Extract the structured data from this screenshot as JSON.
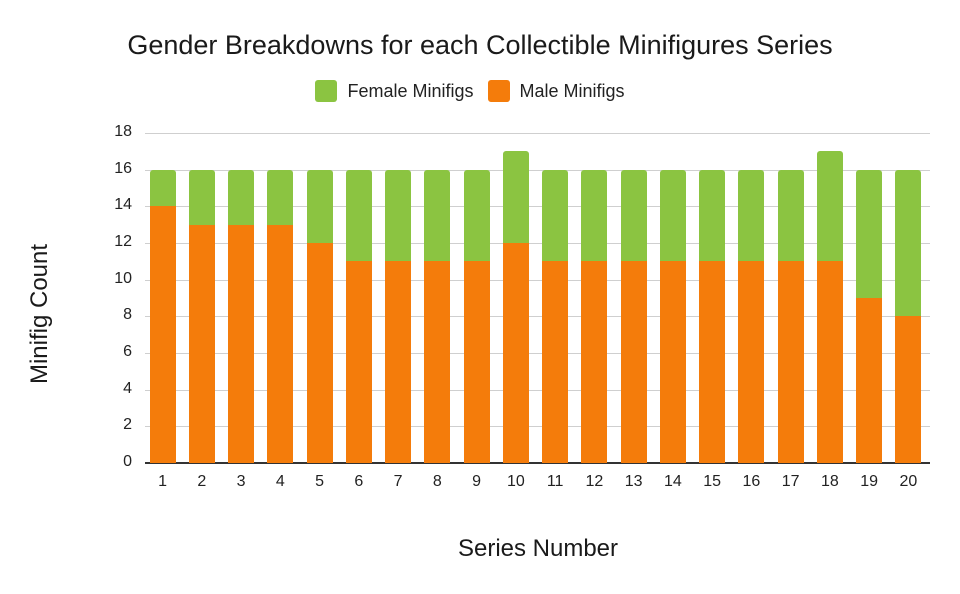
{
  "chart_data": {
    "type": "bar",
    "stacked": true,
    "title": "Gender Breakdowns for each Collectible Minifigures Series",
    "xlabel": "Series Number",
    "ylabel": "Minifig Count",
    "ylim": [
      0,
      18
    ],
    "yticks": [
      0,
      2,
      4,
      6,
      8,
      10,
      12,
      14,
      16,
      18
    ],
    "grid": true,
    "legend_position": "top",
    "categories": [
      "1",
      "2",
      "3",
      "4",
      "5",
      "6",
      "7",
      "8",
      "9",
      "10",
      "11",
      "12",
      "13",
      "14",
      "15",
      "16",
      "17",
      "18",
      "19",
      "20"
    ],
    "series": [
      {
        "name": "Female Minifigs",
        "color": "#8bc441",
        "values": [
          2,
          3,
          3,
          3,
          4,
          5,
          5,
          5,
          5,
          5,
          5,
          5,
          5,
          5,
          5,
          5,
          5,
          6,
          7,
          8
        ]
      },
      {
        "name": "Male Minifigs",
        "color": "#f47c0b",
        "values": [
          14,
          13,
          13,
          13,
          12,
          11,
          11,
          11,
          11,
          12,
          11,
          11,
          11,
          11,
          11,
          11,
          11,
          11,
          9,
          8
        ]
      }
    ]
  },
  "legend": {
    "female_label": "Female Minifigs",
    "male_label": "Male Minifigs"
  }
}
